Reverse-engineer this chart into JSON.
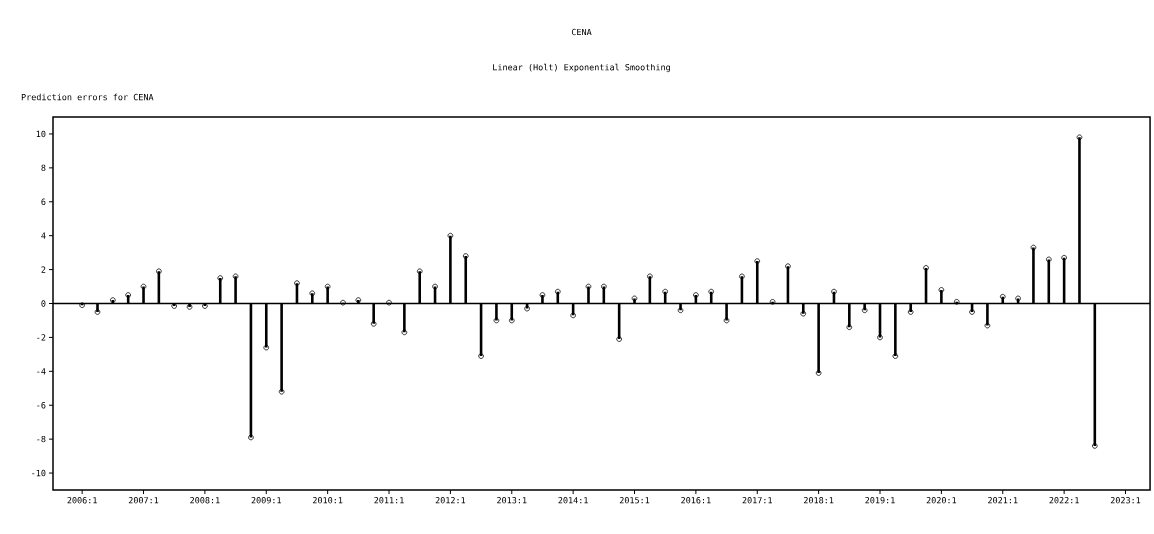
{
  "chart_data": {
    "type": "lollipop",
    "title": "CENA",
    "subtitle": "Linear (Holt) Exponential Smoothing",
    "ylabel": "Prediction errors for CENA",
    "categories": [
      "2006:1",
      null,
      null,
      null,
      "2007:1",
      null,
      null,
      null,
      "2008:1",
      null,
      null,
      null,
      "2009:1",
      null,
      null,
      null,
      "2010:1",
      null,
      null,
      null,
      "2011:1",
      null,
      null,
      null,
      "2012:1",
      null,
      null,
      null,
      "2013:1",
      null,
      null,
      null,
      "2014:1",
      null,
      null,
      null,
      "2015:1",
      null,
      null,
      null,
      "2016:1",
      null,
      null,
      null,
      "2017:1",
      null,
      null,
      null,
      "2018:1",
      null,
      null,
      null,
      "2019:1",
      null,
      null,
      null,
      "2020:1",
      null,
      null,
      null,
      "2021:1",
      null,
      null,
      null,
      "2022:1",
      null,
      null,
      null,
      "2023:1"
    ],
    "values": [
      -0.1,
      -0.5,
      0.2,
      0.5,
      1.0,
      1.9,
      -0.15,
      -0.2,
      -0.15,
      1.5,
      1.6,
      -7.9,
      -2.6,
      -5.2,
      1.2,
      0.6,
      1.0,
      0.05,
      0.2,
      -1.2,
      0.05,
      -1.7,
      1.9,
      1.0,
      4.0,
      2.8,
      -3.1,
      -1.0,
      -1.0,
      -0.3,
      0.5,
      0.7,
      -0.7,
      1.0,
      1.0,
      -2.1,
      0.3,
      1.6,
      0.7,
      -0.4,
      0.5,
      0.7,
      -1.0,
      1.6,
      2.5,
      0.1,
      2.2,
      -0.6,
      -4.1,
      0.7,
      -1.4,
      -0.4,
      -2.0,
      -3.1,
      -0.5,
      2.1,
      0.8,
      0.1,
      -0.5,
      -1.3,
      0.4,
      0.3,
      3.3,
      2.6,
      2.7,
      9.8,
      -8.4,
      null,
      null
    ],
    "color": "#000000",
    "marker": "circle",
    "ylim": [
      -11,
      11
    ],
    "yticks": [
      -10,
      -8,
      -6,
      -4,
      -2,
      0,
      2,
      4,
      6,
      8,
      10
    ],
    "ref_lines": [
      {
        "axis": "y",
        "value": 0
      }
    ],
    "grid": false
  }
}
